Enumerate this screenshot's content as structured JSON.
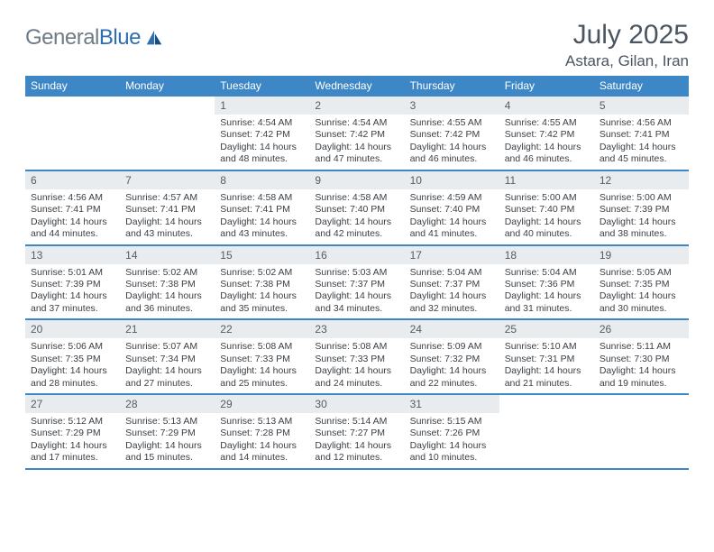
{
  "brand": {
    "part1": "General",
    "part2": "Blue"
  },
  "title": "July 2025",
  "location": "Astara, Gilan, Iran",
  "day_names": [
    "Sunday",
    "Monday",
    "Tuesday",
    "Wednesday",
    "Thursday",
    "Friday",
    "Saturday"
  ],
  "colors": {
    "header_blue": "#3d87c7",
    "daynum_bg": "#e9ecef",
    "text_muted": "#4a5560",
    "logo_gray": "#6f7b85",
    "logo_blue": "#2f6fb0"
  },
  "weeks": [
    [
      {
        "num": "",
        "sunrise": "",
        "sunset": "",
        "daylight": ""
      },
      {
        "num": "",
        "sunrise": "",
        "sunset": "",
        "daylight": ""
      },
      {
        "num": "1",
        "sunrise": "Sunrise: 4:54 AM",
        "sunset": "Sunset: 7:42 PM",
        "daylight": "Daylight: 14 hours and 48 minutes."
      },
      {
        "num": "2",
        "sunrise": "Sunrise: 4:54 AM",
        "sunset": "Sunset: 7:42 PM",
        "daylight": "Daylight: 14 hours and 47 minutes."
      },
      {
        "num": "3",
        "sunrise": "Sunrise: 4:55 AM",
        "sunset": "Sunset: 7:42 PM",
        "daylight": "Daylight: 14 hours and 46 minutes."
      },
      {
        "num": "4",
        "sunrise": "Sunrise: 4:55 AM",
        "sunset": "Sunset: 7:42 PM",
        "daylight": "Daylight: 14 hours and 46 minutes."
      },
      {
        "num": "5",
        "sunrise": "Sunrise: 4:56 AM",
        "sunset": "Sunset: 7:41 PM",
        "daylight": "Daylight: 14 hours and 45 minutes."
      }
    ],
    [
      {
        "num": "6",
        "sunrise": "Sunrise: 4:56 AM",
        "sunset": "Sunset: 7:41 PM",
        "daylight": "Daylight: 14 hours and 44 minutes."
      },
      {
        "num": "7",
        "sunrise": "Sunrise: 4:57 AM",
        "sunset": "Sunset: 7:41 PM",
        "daylight": "Daylight: 14 hours and 43 minutes."
      },
      {
        "num": "8",
        "sunrise": "Sunrise: 4:58 AM",
        "sunset": "Sunset: 7:41 PM",
        "daylight": "Daylight: 14 hours and 43 minutes."
      },
      {
        "num": "9",
        "sunrise": "Sunrise: 4:58 AM",
        "sunset": "Sunset: 7:40 PM",
        "daylight": "Daylight: 14 hours and 42 minutes."
      },
      {
        "num": "10",
        "sunrise": "Sunrise: 4:59 AM",
        "sunset": "Sunset: 7:40 PM",
        "daylight": "Daylight: 14 hours and 41 minutes."
      },
      {
        "num": "11",
        "sunrise": "Sunrise: 5:00 AM",
        "sunset": "Sunset: 7:40 PM",
        "daylight": "Daylight: 14 hours and 40 minutes."
      },
      {
        "num": "12",
        "sunrise": "Sunrise: 5:00 AM",
        "sunset": "Sunset: 7:39 PM",
        "daylight": "Daylight: 14 hours and 38 minutes."
      }
    ],
    [
      {
        "num": "13",
        "sunrise": "Sunrise: 5:01 AM",
        "sunset": "Sunset: 7:39 PM",
        "daylight": "Daylight: 14 hours and 37 minutes."
      },
      {
        "num": "14",
        "sunrise": "Sunrise: 5:02 AM",
        "sunset": "Sunset: 7:38 PM",
        "daylight": "Daylight: 14 hours and 36 minutes."
      },
      {
        "num": "15",
        "sunrise": "Sunrise: 5:02 AM",
        "sunset": "Sunset: 7:38 PM",
        "daylight": "Daylight: 14 hours and 35 minutes."
      },
      {
        "num": "16",
        "sunrise": "Sunrise: 5:03 AM",
        "sunset": "Sunset: 7:37 PM",
        "daylight": "Daylight: 14 hours and 34 minutes."
      },
      {
        "num": "17",
        "sunrise": "Sunrise: 5:04 AM",
        "sunset": "Sunset: 7:37 PM",
        "daylight": "Daylight: 14 hours and 32 minutes."
      },
      {
        "num": "18",
        "sunrise": "Sunrise: 5:04 AM",
        "sunset": "Sunset: 7:36 PM",
        "daylight": "Daylight: 14 hours and 31 minutes."
      },
      {
        "num": "19",
        "sunrise": "Sunrise: 5:05 AM",
        "sunset": "Sunset: 7:35 PM",
        "daylight": "Daylight: 14 hours and 30 minutes."
      }
    ],
    [
      {
        "num": "20",
        "sunrise": "Sunrise: 5:06 AM",
        "sunset": "Sunset: 7:35 PM",
        "daylight": "Daylight: 14 hours and 28 minutes."
      },
      {
        "num": "21",
        "sunrise": "Sunrise: 5:07 AM",
        "sunset": "Sunset: 7:34 PM",
        "daylight": "Daylight: 14 hours and 27 minutes."
      },
      {
        "num": "22",
        "sunrise": "Sunrise: 5:08 AM",
        "sunset": "Sunset: 7:33 PM",
        "daylight": "Daylight: 14 hours and 25 minutes."
      },
      {
        "num": "23",
        "sunrise": "Sunrise: 5:08 AM",
        "sunset": "Sunset: 7:33 PM",
        "daylight": "Daylight: 14 hours and 24 minutes."
      },
      {
        "num": "24",
        "sunrise": "Sunrise: 5:09 AM",
        "sunset": "Sunset: 7:32 PM",
        "daylight": "Daylight: 14 hours and 22 minutes."
      },
      {
        "num": "25",
        "sunrise": "Sunrise: 5:10 AM",
        "sunset": "Sunset: 7:31 PM",
        "daylight": "Daylight: 14 hours and 21 minutes."
      },
      {
        "num": "26",
        "sunrise": "Sunrise: 5:11 AM",
        "sunset": "Sunset: 7:30 PM",
        "daylight": "Daylight: 14 hours and 19 minutes."
      }
    ],
    [
      {
        "num": "27",
        "sunrise": "Sunrise: 5:12 AM",
        "sunset": "Sunset: 7:29 PM",
        "daylight": "Daylight: 14 hours and 17 minutes."
      },
      {
        "num": "28",
        "sunrise": "Sunrise: 5:13 AM",
        "sunset": "Sunset: 7:29 PM",
        "daylight": "Daylight: 14 hours and 15 minutes."
      },
      {
        "num": "29",
        "sunrise": "Sunrise: 5:13 AM",
        "sunset": "Sunset: 7:28 PM",
        "daylight": "Daylight: 14 hours and 14 minutes."
      },
      {
        "num": "30",
        "sunrise": "Sunrise: 5:14 AM",
        "sunset": "Sunset: 7:27 PM",
        "daylight": "Daylight: 14 hours and 12 minutes."
      },
      {
        "num": "31",
        "sunrise": "Sunrise: 5:15 AM",
        "sunset": "Sunset: 7:26 PM",
        "daylight": "Daylight: 14 hours and 10 minutes."
      },
      {
        "num": "",
        "sunrise": "",
        "sunset": "",
        "daylight": ""
      },
      {
        "num": "",
        "sunrise": "",
        "sunset": "",
        "daylight": ""
      }
    ]
  ]
}
